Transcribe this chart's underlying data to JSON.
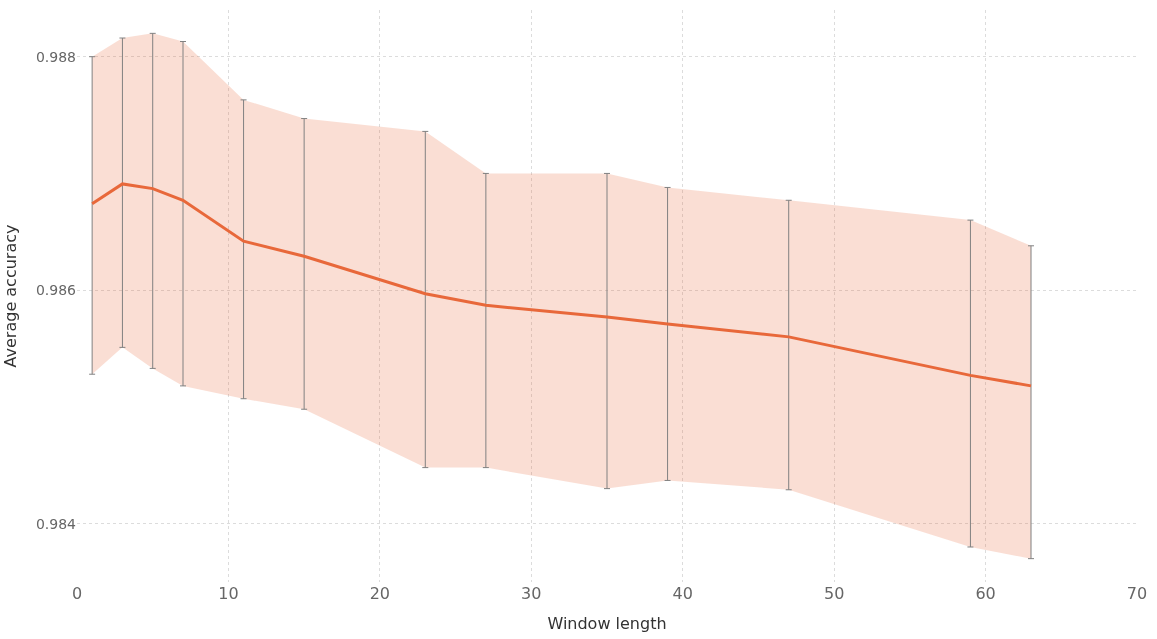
{
  "chart_data": {
    "type": "line",
    "xlabel": "Window length",
    "ylabel": "Average accuracy",
    "x": [
      1,
      3,
      5,
      7,
      11,
      15,
      23,
      27,
      35,
      39,
      47,
      59,
      63
    ],
    "series": [
      {
        "color": "#e8683a",
        "values": [
          0.98674,
          0.98691,
          0.98687,
          0.98677,
          0.98642,
          0.98629,
          0.98597,
          0.98587,
          0.98577,
          0.98571,
          0.9856,
          0.98527,
          0.98518
        ],
        "lower": [
          0.98528,
          0.98551,
          0.98533,
          0.98518,
          0.98507,
          0.98498,
          0.98448,
          0.98448,
          0.9843,
          0.98437,
          0.98429,
          0.9838,
          0.9837
        ],
        "upper": [
          0.988,
          0.98816,
          0.9882,
          0.98813,
          0.98763,
          0.98747,
          0.98736,
          0.987,
          0.987,
          0.98688,
          0.98677,
          0.9866,
          0.98638
        ],
        "errors": [
          [
            0.98528,
            0.988
          ],
          [
            0.98551,
            0.98816
          ],
          [
            0.98533,
            0.9882
          ],
          [
            0.98518,
            0.98813
          ],
          [
            0.98507,
            0.98763
          ],
          [
            0.98498,
            0.98747
          ],
          [
            0.98448,
            0.98736
          ],
          [
            0.98448,
            0.987
          ],
          [
            0.9843,
            0.987
          ],
          [
            0.98437,
            0.98688
          ],
          [
            0.98429,
            0.98677
          ],
          [
            0.9838,
            0.9866
          ],
          [
            0.9837,
            0.98638
          ]
        ]
      }
    ],
    "xlim": [
      0,
      70
    ],
    "xticks": [
      0,
      10,
      20,
      30,
      40,
      50,
      60,
      70
    ],
    "ylim": [
      0.9835,
      0.9884
    ],
    "yticks": [
      0.984,
      0.986,
      0.988
    ],
    "grid": true,
    "marker": "none",
    "line_style": "solid"
  }
}
